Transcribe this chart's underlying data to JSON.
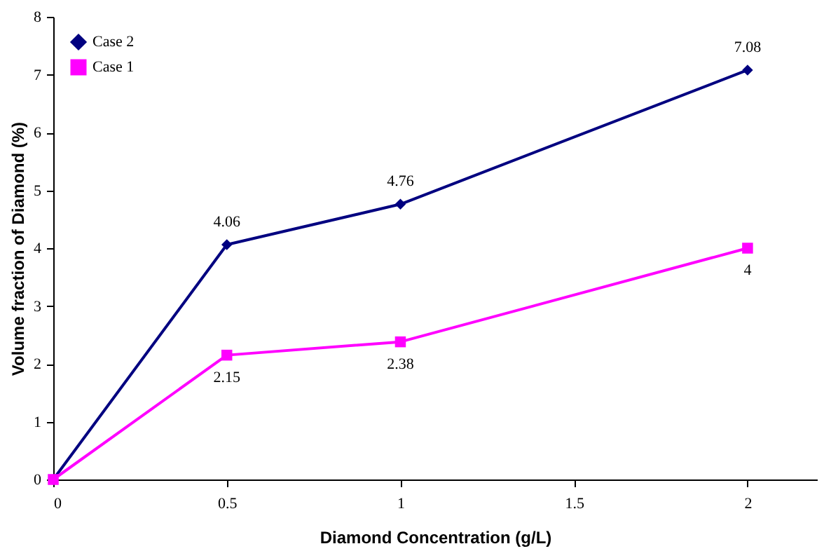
{
  "chart_data": {
    "type": "line",
    "xlabel": "Diamond Concentration (g/L)",
    "ylabel": "Volume fraction of Diamond (%)",
    "x": [
      0,
      0.5,
      1,
      2
    ],
    "series": [
      {
        "name": "Case 2",
        "color": "#000080",
        "marker": "diamond",
        "values": [
          0,
          4.06,
          4.76,
          7.08
        ],
        "value_labels": [
          null,
          "4.06",
          "4.76",
          "7.08"
        ]
      },
      {
        "name": "Case 1",
        "color": "#ff00ff",
        "marker": "square",
        "values": [
          0,
          2.15,
          2.38,
          4
        ],
        "value_labels": [
          null,
          "2.15",
          "2.38",
          "4"
        ]
      }
    ],
    "xlim": [
      0,
      2.2
    ],
    "xticks": [
      0,
      0.5,
      1,
      1.5,
      2
    ],
    "ylim": [
      0,
      8
    ],
    "yticks": [
      0,
      1,
      2,
      3,
      4,
      5,
      6,
      7,
      8
    ],
    "grid": false,
    "legend": "top left",
    "line_style": "solid"
  }
}
